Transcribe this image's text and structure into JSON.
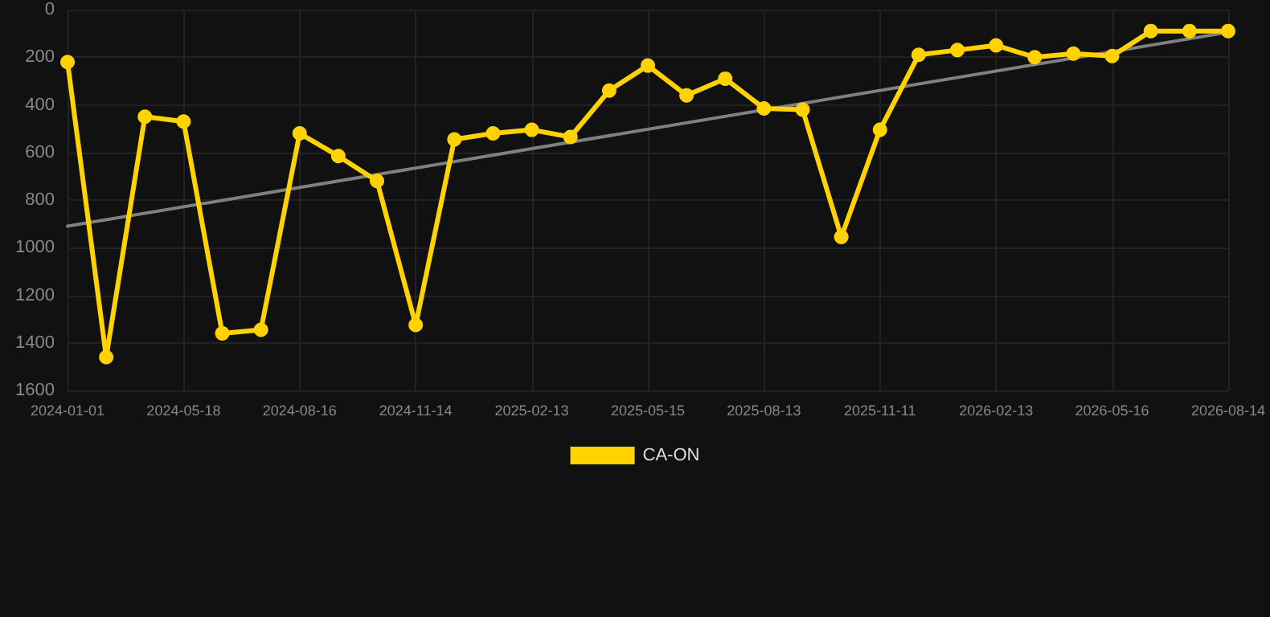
{
  "chart_data": {
    "type": "line",
    "categories": [
      "2024-01-01",
      null,
      null,
      "2024-05-18",
      null,
      null,
      "2024-08-16",
      null,
      null,
      "2024-11-14",
      null,
      null,
      "2025-02-13",
      null,
      null,
      "2025-05-15",
      null,
      null,
      "2025-08-13",
      null,
      null,
      "2025-11-11",
      null,
      null,
      "2026-02-13",
      null,
      null,
      "2026-05-16",
      null,
      null,
      "2026-08-14"
    ],
    "series": [
      {
        "name": "CA-ON",
        "color": "#ffd200",
        "values": [
          220,
          1460,
          450,
          470,
          1360,
          1345,
          520,
          615,
          720,
          1325,
          545,
          520,
          505,
          535,
          340,
          235,
          360,
          290,
          415,
          420,
          955,
          505,
          190,
          170,
          150,
          200,
          185,
          195,
          90,
          90,
          90
        ]
      },
      {
        "type": "line",
        "color": "#808080",
        "values": [
          910,
          null,
          null,
          null,
          null,
          null,
          null,
          null,
          null,
          null,
          null,
          null,
          null,
          null,
          null,
          null,
          null,
          null,
          null,
          null,
          null,
          null,
          null,
          null,
          null,
          null,
          null,
          null,
          null,
          null,
          95
        ],
        "marker": "none"
      }
    ],
    "ylim": [
      1600,
      0
    ],
    "yticks": [
      0,
      200,
      400,
      600,
      800,
      1000,
      1200,
      1400,
      1600
    ],
    "grid": true,
    "legend": "bottom",
    "marker": "circle",
    "line_style": "solid"
  }
}
